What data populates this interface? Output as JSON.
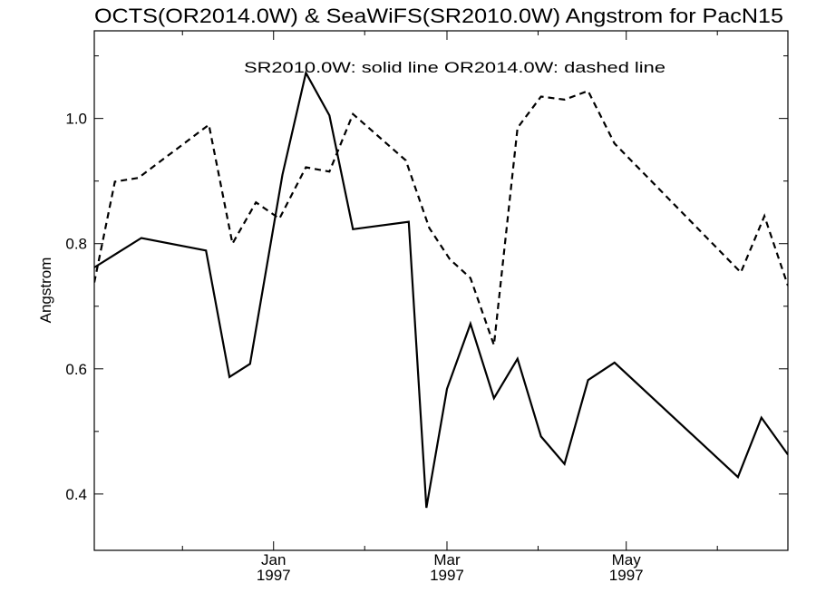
{
  "chart_data": {
    "type": "line",
    "title": "OCTS(OR2014.0W) & SeaWiFS(SR2010.0W)  Angstrom for PacN15",
    "legend_text": "SR2010.0W: solid line   OR2014.0W: dashed line",
    "ylabel": "Angstrom",
    "xlabel": "",
    "xlim": [
      "1996-11-01",
      "1997-06-25"
    ],
    "ylim": [
      0.31,
      1.14
    ],
    "yticks": [
      0.4,
      0.6,
      0.8,
      1.0
    ],
    "ytick_labels": [
      "0.4",
      "0.6",
      "0.8",
      "1.0"
    ],
    "xticks": [
      {
        "date": "1997-01-01",
        "month": "Jan",
        "year": "1997"
      },
      {
        "date": "1997-03-01",
        "month": "Mar",
        "year": "1997"
      },
      {
        "date": "1997-05-01",
        "month": "May",
        "year": "1997"
      }
    ],
    "minor_xticks": [
      "1996-12-01",
      "1997-02-01",
      "1997-04-01",
      "1997-06-01"
    ],
    "series": [
      {
        "name": "SR2010.0W",
        "style": "solid",
        "points": [
          [
            "1996-11-01",
            0.762
          ],
          [
            "1996-11-17",
            0.809
          ],
          [
            "1996-12-09",
            0.789
          ],
          [
            "1996-12-17",
            0.587
          ],
          [
            "1996-12-24",
            0.608
          ],
          [
            "1997-01-04",
            0.91
          ],
          [
            "1997-01-12",
            1.073
          ],
          [
            "1997-01-20",
            1.005
          ],
          [
            "1997-01-28",
            0.823
          ],
          [
            "1997-02-16",
            0.835
          ],
          [
            "1997-02-22",
            0.378
          ],
          [
            "1997-03-01",
            0.568
          ],
          [
            "1997-03-09",
            0.672
          ],
          [
            "1997-03-17",
            0.553
          ],
          [
            "1997-03-25",
            0.616
          ],
          [
            "1997-04-02",
            0.492
          ],
          [
            "1997-04-10",
            0.448
          ],
          [
            "1997-04-18",
            0.582
          ],
          [
            "1997-04-27",
            0.61
          ],
          [
            "1997-06-08",
            0.427
          ],
          [
            "1997-06-16",
            0.522
          ],
          [
            "1997-06-25",
            0.463
          ]
        ]
      },
      {
        "name": "OR2014.0W",
        "style": "dashed",
        "points": [
          [
            "1996-11-01",
            0.738
          ],
          [
            "1996-11-08",
            0.899
          ],
          [
            "1996-11-16",
            0.905
          ],
          [
            "1996-12-10",
            0.99
          ],
          [
            "1996-12-18",
            0.8
          ],
          [
            "1996-12-26",
            0.866
          ],
          [
            "1997-01-03",
            0.84
          ],
          [
            "1997-01-12",
            0.922
          ],
          [
            "1997-01-20",
            0.915
          ],
          [
            "1997-01-28",
            1.007
          ],
          [
            "1997-02-15",
            0.933
          ],
          [
            "1997-02-23",
            0.825
          ],
          [
            "1997-03-02",
            0.775
          ],
          [
            "1997-03-09",
            0.745
          ],
          [
            "1997-03-17",
            0.638
          ],
          [
            "1997-03-25",
            0.985
          ],
          [
            "1997-04-02",
            1.035
          ],
          [
            "1997-04-10",
            1.03
          ],
          [
            "1997-04-18",
            1.044
          ],
          [
            "1997-04-27",
            0.96
          ],
          [
            "1997-06-09",
            0.754
          ],
          [
            "1997-06-17",
            0.844
          ],
          [
            "1997-06-25",
            0.733
          ]
        ]
      }
    ]
  }
}
